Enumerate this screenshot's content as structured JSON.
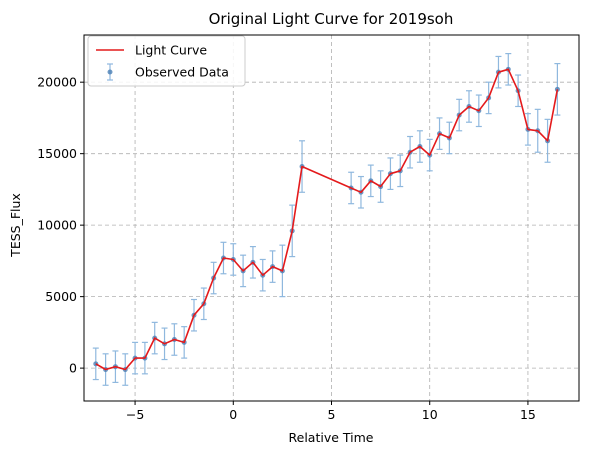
{
  "chart_data": {
    "type": "line",
    "title": "Original Light Curve for 2019soh",
    "xlabel": "Relative Time",
    "ylabel": "TESS_Flux",
    "xlim": [
      -7.6,
      17.6
    ],
    "ylim": [
      -2300,
      23300
    ],
    "xticks": [
      -5,
      0,
      5,
      10,
      15
    ],
    "xtick_labels": [
      "−5",
      "0",
      "5",
      "10",
      "15"
    ],
    "yticks": [
      0,
      5000,
      10000,
      15000,
      20000
    ],
    "ytick_labels": [
      "0",
      "5000",
      "10000",
      "15000",
      "20000"
    ],
    "grid": true,
    "legend_position": "top-left",
    "colors": {
      "line": "#e41a1c",
      "points": "#4a7fb5",
      "errorbars": "#8fb8de"
    },
    "series": [
      {
        "name": "Light Curve",
        "kind": "line",
        "x": [
          -7.0,
          -6.5,
          -6.0,
          -5.5,
          -5.0,
          -4.5,
          -4.0,
          -3.5,
          -3.0,
          -2.5,
          -2.0,
          -1.5,
          -1.0,
          -0.5,
          0.0,
          0.5,
          1.0,
          1.5,
          2.0,
          2.5,
          3.0,
          3.5,
          6.0,
          6.5,
          7.0,
          7.5,
          8.0,
          8.5,
          9.0,
          9.5,
          10.0,
          10.5,
          11.0,
          11.5,
          12.0,
          12.5,
          13.0,
          13.5,
          14.0,
          14.5,
          15.0,
          15.5,
          16.0,
          16.5
        ],
        "y": [
          300,
          -100,
          100,
          -100,
          700,
          700,
          2100,
          1700,
          2000,
          1800,
          3700,
          4500,
          6300,
          7700,
          7600,
          6800,
          7400,
          6500,
          7100,
          6800,
          9600,
          14100,
          12600,
          12300,
          13100,
          12700,
          13600,
          13800,
          15100,
          15500,
          14900,
          16400,
          16100,
          17700,
          18300,
          18000,
          18900,
          20700,
          20900,
          19400,
          16700,
          16600,
          15900,
          19500
        ]
      },
      {
        "name": "Observed Data",
        "kind": "errorbar",
        "x": [
          -7.0,
          -6.5,
          -6.0,
          -5.5,
          -5.0,
          -4.5,
          -4.0,
          -3.5,
          -3.0,
          -2.5,
          -2.0,
          -1.5,
          -1.0,
          -0.5,
          0.0,
          0.5,
          1.0,
          1.5,
          2.0,
          2.5,
          3.0,
          3.5,
          6.0,
          6.5,
          7.0,
          7.5,
          8.0,
          8.5,
          9.0,
          9.5,
          10.0,
          10.5,
          11.0,
          11.5,
          12.0,
          12.5,
          13.0,
          13.5,
          14.0,
          14.5,
          15.0,
          15.5,
          16.0,
          16.5
        ],
        "y": [
          300,
          -100,
          100,
          -100,
          700,
          700,
          2100,
          1700,
          2000,
          1800,
          3700,
          4500,
          6300,
          7700,
          7600,
          6800,
          7400,
          6500,
          7100,
          6800,
          9600,
          14100,
          12600,
          12300,
          13100,
          12700,
          13600,
          13800,
          15100,
          15500,
          14900,
          16400,
          16100,
          17700,
          18300,
          18000,
          18900,
          20700,
          20900,
          19400,
          16700,
          16600,
          15900,
          19500
        ],
        "yerr": [
          1100,
          1100,
          1100,
          1100,
          1100,
          1100,
          1100,
          1100,
          1100,
          1100,
          1100,
          1100,
          1100,
          1100,
          1100,
          1100,
          1100,
          1100,
          1100,
          1800,
          1800,
          1800,
          1100,
          1100,
          1100,
          1100,
          1100,
          1100,
          1100,
          1100,
          1100,
          1100,
          1100,
          1100,
          1100,
          1100,
          1100,
          1100,
          1100,
          1100,
          1100,
          1500,
          1500,
          1800
        ]
      }
    ]
  }
}
